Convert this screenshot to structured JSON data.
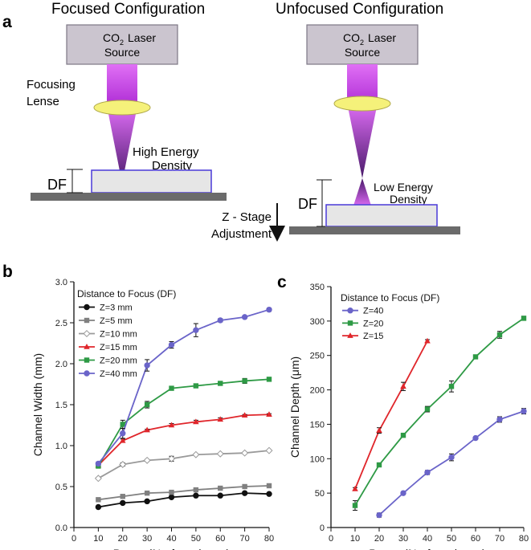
{
  "panel_a": {
    "label": "a",
    "left": {
      "title": "Focused Configuration",
      "source_line1": "CO",
      "source_sub": "2",
      "source_word": "Laser",
      "source_line2": "Source",
      "lens_label_1": "Focusing",
      "lens_label_2": "Lense",
      "energy_label_1": "High Energy",
      "energy_label_2": "Density",
      "df_label": "DF"
    },
    "right": {
      "title": "Unfocused Configuration",
      "source_line1": "CO",
      "source_sub": "2",
      "source_word": "Laser",
      "source_line2": "Source",
      "energy_label_1": "Low Energy",
      "energy_label_2": "Density",
      "df_label": "DF"
    },
    "stage_label_1": "Z - Stage",
    "stage_label_2": "Adjustment",
    "colors": {
      "source_fill": "#cbc5cf",
      "beam": "#d94df2",
      "lens": "#f5f17a",
      "substrate_fill": "#e6e6e6",
      "substrate_border": "#4a3ad8",
      "stage": "#6b6b6b"
    }
  },
  "chart_data": [
    {
      "panel": "b",
      "type": "line",
      "xlabel": "Power (% of maximum)",
      "ylabel": "Channel Width (mm)",
      "xlim": [
        0,
        80
      ],
      "ylim": [
        0,
        3.0
      ],
      "xticks": [
        "0",
        "10",
        "20",
        "30",
        "40",
        "50",
        "60",
        "70",
        "80"
      ],
      "yticks": [
        "0.0",
        "0.5",
        "1.0",
        "1.5",
        "2.0",
        "2.5",
        "3.0"
      ],
      "legend_title": "Distance to Focus (DF)",
      "legend_position": "top-left",
      "x": [
        10,
        20,
        30,
        40,
        50,
        60,
        70,
        80
      ],
      "series": [
        {
          "name": "Z=3 mm",
          "color": "#111111",
          "marker": "circle-filled",
          "values": [
            0.25,
            0.3,
            0.32,
            0.37,
            0.39,
            0.39,
            0.42,
            0.41
          ],
          "errors": [
            0.01,
            0.01,
            0.01,
            0.01,
            0.01,
            0.01,
            0.01,
            0.01
          ]
        },
        {
          "name": "Z=5 mm",
          "color": "#808080",
          "marker": "square",
          "values": [
            0.34,
            0.38,
            0.42,
            0.43,
            0.46,
            0.48,
            0.5,
            0.51
          ],
          "errors": [
            0.01,
            0.01,
            0.01,
            0.01,
            0.01,
            0.01,
            0.01,
            0.01
          ]
        },
        {
          "name": "Z=10 mm",
          "color": "#9a9a9a",
          "marker": "diamond-open",
          "values": [
            0.6,
            0.77,
            0.82,
            0.84,
            0.89,
            0.9,
            0.91,
            0.94
          ],
          "errors": [
            0.01,
            0.02,
            0.01,
            0.03,
            0.01,
            0.01,
            0.01,
            0.01
          ]
        },
        {
          "name": "Z=15 mm",
          "color": "#e0262b",
          "marker": "triangle",
          "values": [
            0.76,
            1.06,
            1.19,
            1.25,
            1.29,
            1.32,
            1.37,
            1.38
          ],
          "errors": [
            0.01,
            0.02,
            0.01,
            0.02,
            0.02,
            0.02,
            0.01,
            0.01
          ]
        },
        {
          "name": "Z=20 mm",
          "color": "#2e9a45",
          "marker": "square",
          "values": [
            0.75,
            1.26,
            1.5,
            1.7,
            1.73,
            1.76,
            1.79,
            1.81
          ],
          "errors": [
            0.02,
            0.05,
            0.04,
            0.02,
            0.02,
            0.02,
            0.03,
            0.01
          ]
        },
        {
          "name": "Z=40 mm",
          "color": "#6a64c9",
          "marker": "circle-filled",
          "values": [
            0.78,
            1.15,
            1.98,
            2.23,
            2.41,
            2.53,
            2.57,
            2.66
          ],
          "errors": [
            0.02,
            0.06,
            0.07,
            0.04,
            0.08,
            0.02,
            0.01,
            0.02
          ]
        }
      ]
    },
    {
      "panel": "c",
      "type": "line",
      "xlabel": "Power (% of maximum)",
      "ylabel": "Channel Depth (μm)",
      "xlim": [
        0,
        80
      ],
      "ylim": [
        0,
        350
      ],
      "xticks": [
        "0",
        "10",
        "20",
        "30",
        "40",
        "50",
        "60",
        "70",
        "80"
      ],
      "yticks": [
        "0",
        "50",
        "100",
        "150",
        "200",
        "250",
        "300",
        "350"
      ],
      "legend_title": "Distance to Focus (DF)",
      "legend_position": "top-left",
      "series": [
        {
          "name": "Z=40",
          "color": "#6a64c9",
          "marker": "circle-filled",
          "x": [
            20,
            30,
            40,
            50,
            60,
            70,
            80
          ],
          "values": [
            18,
            50,
            80,
            102,
            130,
            157,
            169
          ],
          "errors": [
            3,
            1,
            3,
            5,
            1,
            4,
            4
          ]
        },
        {
          "name": "Z=20",
          "color": "#2e9a45",
          "marker": "square",
          "x": [
            10,
            20,
            30,
            40,
            50,
            60,
            70,
            80
          ],
          "values": [
            32,
            91,
            134,
            172,
            205,
            248,
            280,
            304
          ],
          "errors": [
            7,
            2,
            2,
            4,
            8,
            2,
            5,
            3
          ]
        },
        {
          "name": "Z=15",
          "color": "#e0262b",
          "marker": "triangle",
          "x": [
            10,
            20,
            30,
            40
          ],
          "values": [
            56,
            141,
            205,
            271
          ],
          "errors": [
            2,
            4,
            6,
            2
          ]
        }
      ]
    }
  ],
  "panel_labels": {
    "b": "b",
    "c": "c"
  }
}
